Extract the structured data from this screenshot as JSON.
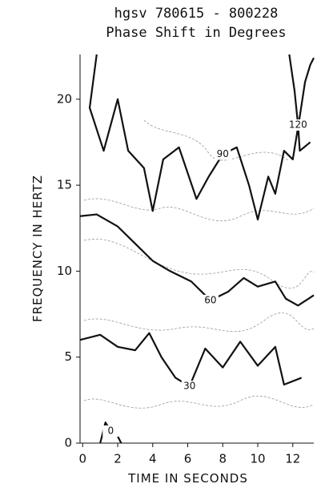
{
  "chart_data": {
    "type": "contour",
    "title": "hgsv   780615 - 800228",
    "subtitle": "Phase Shift in Degrees",
    "x_label": "TIME IN SECONDS",
    "y_label": "FREQUENCY IN HERTZ",
    "xlim": [
      -0.15,
      13.2
    ],
    "ylim": [
      0,
      22.6
    ],
    "xticks": [
      0,
      2,
      4,
      6,
      8,
      10,
      12
    ],
    "yticks": [
      0,
      5,
      10,
      15,
      20
    ],
    "color": "#111111",
    "contours": [
      {
        "level": 90,
        "x": [
          0.8,
          0.4,
          1.2,
          2,
          2.6,
          3.5,
          4,
          4.6,
          5.5,
          6.5,
          7.2,
          8,
          8.8,
          9.5,
          10,
          10.6,
          11,
          11.5,
          12,
          12.4,
          12.7,
          13,
          13.2
        ],
        "y": [
          22.6,
          19.5,
          17,
          20,
          17,
          16,
          13.5,
          16.5,
          17.2,
          14.2,
          15.5,
          16.8,
          17.2,
          15,
          13,
          15.5,
          14.5,
          17,
          16.5,
          19,
          21,
          22,
          22.4
        ]
      },
      {
        "level": 60,
        "x": [
          -0.15,
          0.8,
          2,
          3,
          4,
          5,
          6.2,
          7.3,
          8.3,
          9.2,
          10,
          11,
          11.6,
          12.3,
          13.2
        ],
        "y": [
          13.2,
          13.3,
          12.6,
          11.6,
          10.6,
          10,
          9.4,
          8.3,
          8.8,
          9.6,
          9.1,
          9.4,
          8.4,
          8,
          8.6
        ]
      },
      {
        "level": 30,
        "x": [
          -0.15,
          1,
          2,
          3,
          3.8,
          4.5,
          5.3,
          6.1,
          7,
          8,
          9,
          10,
          11,
          11.5,
          12.5
        ],
        "y": [
          6,
          6.3,
          5.6,
          5.4,
          6.4,
          5,
          3.8,
          3.3,
          5.5,
          4.4,
          5.9,
          4.5,
          5.6,
          3.4,
          3.8
        ]
      },
      {
        "level": 120,
        "x": [
          11.8,
          12.1,
          12.3,
          12.4,
          13
        ],
        "y": [
          22.6,
          20.5,
          18.5,
          17,
          17.5
        ]
      },
      {
        "level": 0,
        "x": [
          1,
          1.3,
          1.6,
          2,
          2.2
        ],
        "y": [
          0,
          1.2,
          0.7,
          0.4,
          0
        ]
      }
    ]
  }
}
